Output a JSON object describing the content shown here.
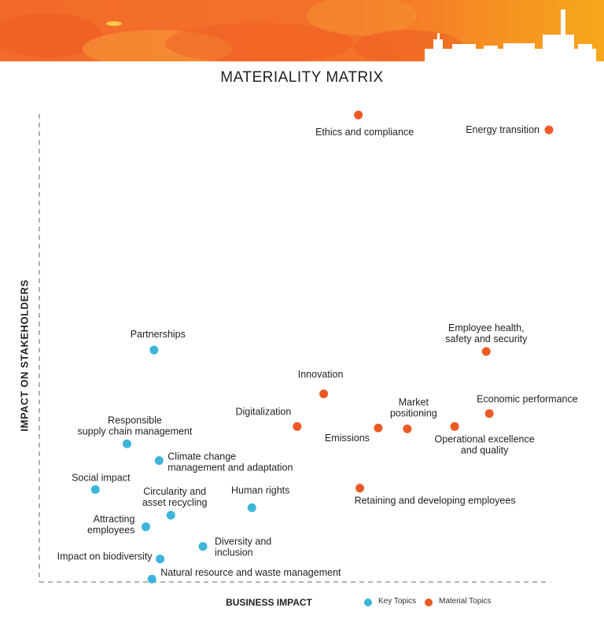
{
  "title": "MATERIALITY MATRIX",
  "colors": {
    "key_topics": "#3db4dc",
    "material_topics": "#ee5a24",
    "banner_start": "#f26a2a",
    "banner_end": "#f7a81b",
    "axis": "#888888"
  },
  "legend": {
    "key": "Key Topics",
    "material": "Material Topics"
  },
  "chart_data": {
    "type": "scatter",
    "title": "MATERIALITY MATRIX",
    "xlabel": "BUSINESS IMPACT",
    "ylabel": "IMPACT ON STAKEHOLDERS",
    "xlim": [
      0,
      100
    ],
    "ylim": [
      0,
      100
    ],
    "grid": false,
    "legend_position": "bottom",
    "series": [
      {
        "name": "Key Topics",
        "points": [
          {
            "label": "Partnerships",
            "x": 22.5,
            "y": 49.4
          },
          {
            "label": "Responsible supply chain management",
            "x": 17.2,
            "y": 29.3
          },
          {
            "label": "Climate change management and adaptation",
            "x": 23.5,
            "y": 25.7
          },
          {
            "label": "Social impact",
            "x": 11.0,
            "y": 19.5
          },
          {
            "label": "Circularity and asset recycling",
            "x": 25.8,
            "y": 14.0
          },
          {
            "label": "Human rights",
            "x": 41.7,
            "y": 15.6
          },
          {
            "label": "Attracting employees",
            "x": 20.9,
            "y": 11.5
          },
          {
            "label": "Diversity and inclusion",
            "x": 32.1,
            "y": 7.3
          },
          {
            "label": "Impact on biodiversity",
            "x": 23.7,
            "y": 4.6
          },
          {
            "label": "Natural resource and waste management",
            "x": 22.1,
            "y": 0.3
          }
        ]
      },
      {
        "name": "Material Topics",
        "points": [
          {
            "label": "Ethics and compliance",
            "x": 62.6,
            "y": 99.8
          },
          {
            "label": "Energy transition",
            "x": 100.0,
            "y": 96.6
          },
          {
            "label": "Employee health, safety and security",
            "x": 87.7,
            "y": 49.1
          },
          {
            "label": "Innovation",
            "x": 55.8,
            "y": 40.0
          },
          {
            "label": "Economic performance",
            "x": 88.3,
            "y": 35.8
          },
          {
            "label": "Digitalization",
            "x": 50.6,
            "y": 33.0
          },
          {
            "label": "Emissions",
            "x": 66.5,
            "y": 32.7
          },
          {
            "label": "Market positioning",
            "x": 72.2,
            "y": 32.5
          },
          {
            "label": "Operational excellence and quality",
            "x": 81.5,
            "y": 33.0
          },
          {
            "label": "Retaining and developing employees",
            "x": 62.9,
            "y": 19.8
          }
        ]
      }
    ]
  }
}
